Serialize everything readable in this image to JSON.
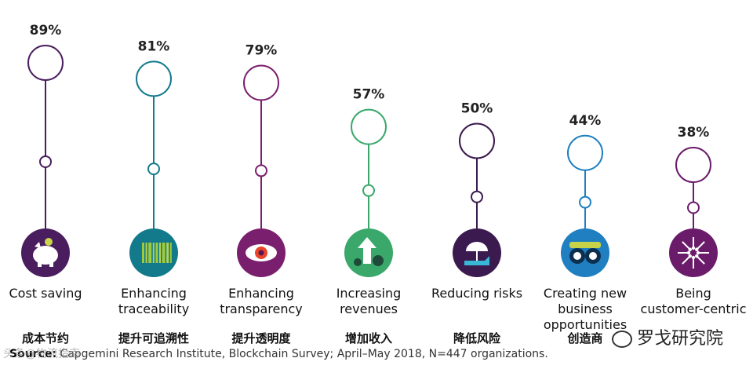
{
  "chart_data": {
    "type": "lollipop",
    "unit": "%",
    "categories": [
      {
        "label": [
          "Cost saving"
        ],
        "zh": "成本节约",
        "value": 89,
        "color": "#4a1d5e",
        "icon": "piggy-bank-icon"
      },
      {
        "label": [
          "Enhancing",
          "traceability"
        ],
        "zh": "提升可追溯性",
        "value": 81,
        "color": "#137a8c",
        "icon": "barcode-icon"
      },
      {
        "label": [
          "Enhancing",
          "transparency"
        ],
        "zh": "提升透明度",
        "value": 79,
        "color": "#7a1f6e",
        "icon": "eye-icon"
      },
      {
        "label": [
          "Increasing",
          "revenues"
        ],
        "zh": "增加收入",
        "value": 57,
        "color": "#3aa86a",
        "icon": "revenue-arrow-icon"
      },
      {
        "label": [
          "Reducing risks"
        ],
        "zh": "降低风险",
        "value": 50,
        "color": "#3b1a4f",
        "icon": "umbrella-hand-icon"
      },
      {
        "label": [
          "Creating new",
          "business",
          "opportunities"
        ],
        "zh": "创造商",
        "value": 44,
        "color": "#1f7fc0",
        "icon": "binoculars-icon"
      },
      {
        "label": [
          "Being",
          "customer-centric"
        ],
        "zh": "",
        "value": 38,
        "color": "#6a1c6a",
        "icon": "converging-arrows-icon"
      }
    ]
  },
  "source": {
    "prefix": "Source:",
    "text": " Capgemini Research Institute, Blockchain Survey; April–May 2018, N=447 organizations."
  },
  "watermark": {
    "text": "罗戈研究院",
    "left_text": "头条@物流指南"
  }
}
